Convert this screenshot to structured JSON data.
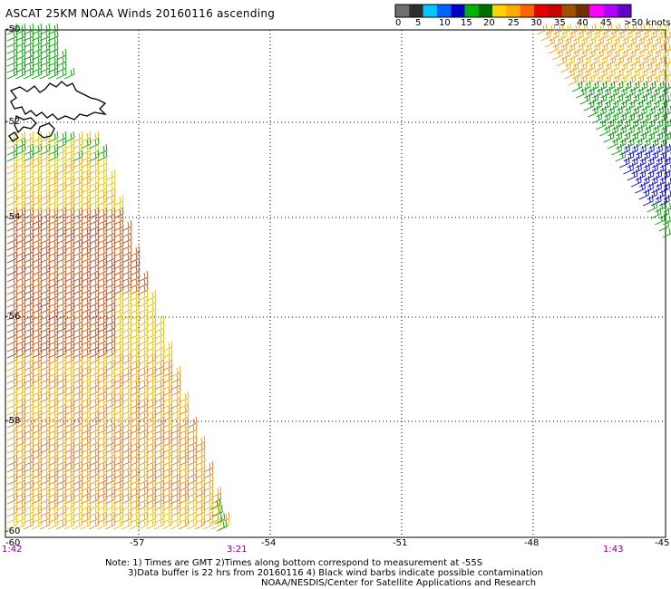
{
  "title": "ASCAT 25KM NOAA Winds 20160116 ascending",
  "legend": {
    "labels": [
      "0",
      "5",
      "10",
      "15",
      "20",
      "25",
      "30",
      "35",
      "40",
      "45",
      ">50 knots"
    ],
    "colors": [
      "#6e6e6e",
      "#2e2e2e",
      "#00c8ff",
      "#0064ff",
      "#0000c8",
      "#00b400",
      "#006e00",
      "#ffd200",
      "#ffaa00",
      "#ff6400",
      "#e60000",
      "#c80000",
      "#a05000",
      "#6e3200",
      "#ff00ff",
      "#b400ff",
      "#6400c8"
    ]
  },
  "axes": {
    "lon_labels": [
      "-60",
      "-57",
      "-54",
      "-51",
      "-48",
      "-45"
    ],
    "lat_labels": [
      "-50",
      "-52",
      "-54",
      "-56",
      "-58",
      "-60"
    ]
  },
  "times": {
    "left": "1:42",
    "middle": "3:21",
    "right": "1:43"
  },
  "notes": {
    "line1": "Note: 1) Times are GMT 2)Times along bottom correspond to measurement at -55S",
    "line2": "3)Data buffer is 22 hrs from 20160116 4) Black wind barbs indicate possible contamination",
    "line3": "NOAA/NESDIS/Center for Satellite Applications and Research"
  }
}
